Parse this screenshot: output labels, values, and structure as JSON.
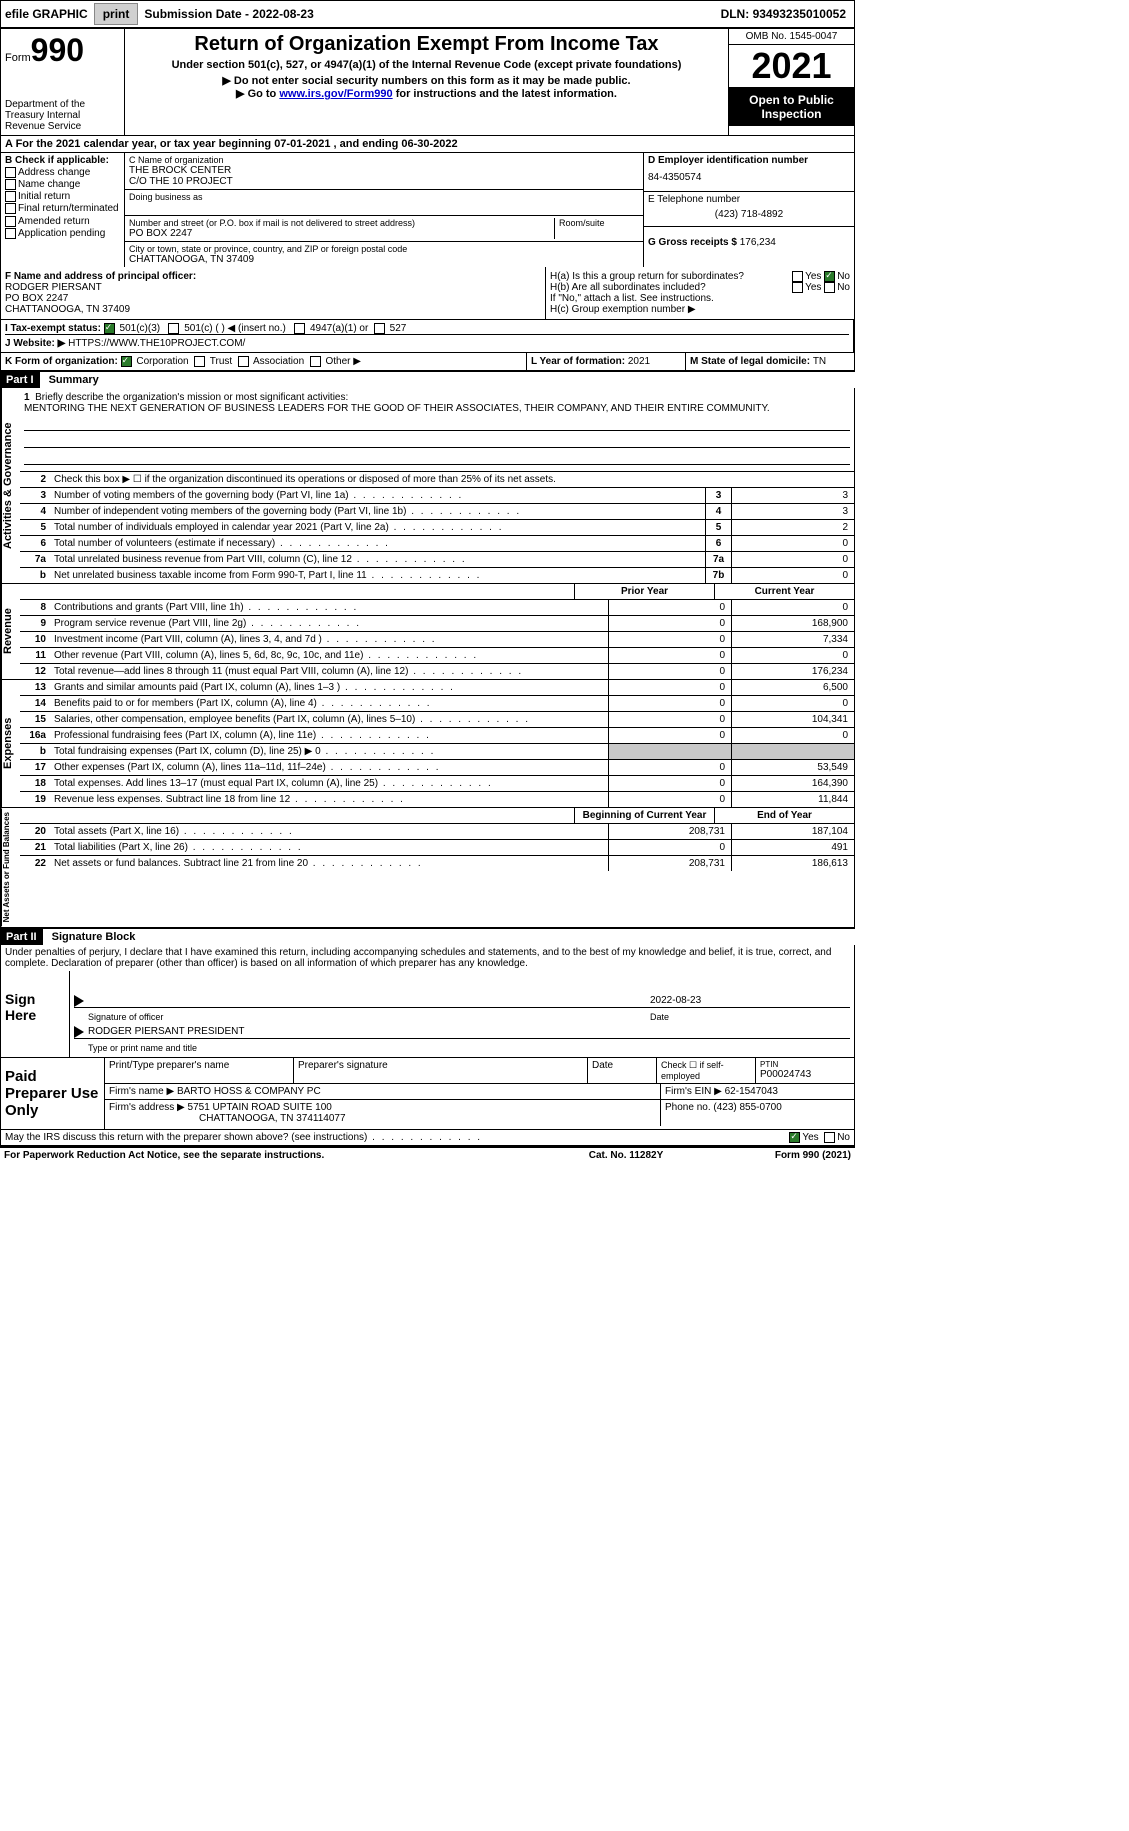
{
  "topbar": {
    "efile": "efile GRAPHIC",
    "print": "print",
    "subdate_label": "Submission Date - ",
    "subdate": "2022-08-23",
    "dln_label": "DLN: ",
    "dln": "93493235010052"
  },
  "header": {
    "form_word": "Form",
    "form_num": "990",
    "dept": "Department of the Treasury Internal Revenue Service",
    "title": "Return of Organization Exempt From Income Tax",
    "subtitle": "Under section 501(c), 527, or 4947(a)(1) of the Internal Revenue Code (except private foundations)",
    "instr1": "▶ Do not enter social security numbers on this form as it may be made public.",
    "instr2_pre": "▶ Go to ",
    "instr2_link": "www.irs.gov/Form990",
    "instr2_post": " for instructions and the latest information.",
    "omb": "OMB No. 1545-0047",
    "year": "2021",
    "open": "Open to Public Inspection"
  },
  "row_a": "A For the 2021 calendar year, or tax year beginning 07-01-2021    , and ending 06-30-2022",
  "col_b": {
    "title": "B Check if applicable:",
    "items": [
      "Address change",
      "Name change",
      "Initial return",
      "Final return/terminated",
      "Amended return",
      "Application pending"
    ]
  },
  "col_c": {
    "name_label": "C Name of organization",
    "name1": "THE BROCK CENTER",
    "name2": "C/O THE 10 PROJECT",
    "dba_label": "Doing business as",
    "addr_label": "Number and street (or P.O. box if mail is not delivered to street address)",
    "room_label": "Room/suite",
    "addr": "PO BOX 2247",
    "city_label": "City or town, state or province, country, and ZIP or foreign postal code",
    "city": "CHATTANOOGA, TN  37409"
  },
  "col_d": {
    "ein_label": "D Employer identification number",
    "ein": "84-4350574",
    "tel_label": "E Telephone number",
    "tel": "(423) 718-4892",
    "gross_label": "G Gross receipts $ ",
    "gross": "176,234"
  },
  "col_f": {
    "label": "F Name and address of principal officer:",
    "name": "RODGER PIERSANT",
    "addr": "PO BOX 2247",
    "city": "CHATTANOOGA, TN  37409"
  },
  "col_h": {
    "ha": "H(a)  Is this a group return for subordinates?",
    "hb": "H(b)  Are all subordinates included?",
    "hb_note": "If \"No,\" attach a list. See instructions.",
    "hc": "H(c)  Group exemption number ▶",
    "yes": "Yes",
    "no": "No"
  },
  "row_i": {
    "label": "I    Tax-exempt status:",
    "opt1": "501(c)(3)",
    "opt2": "501(c) (  ) ◀ (insert no.)",
    "opt3": "4947(a)(1) or",
    "opt4": "527"
  },
  "row_j": {
    "label": "J   Website: ▶",
    "url": "HTTPS://WWW.THE10PROJECT.COM/"
  },
  "row_k": {
    "label": "K Form of organization:",
    "opts": [
      "Corporation",
      "Trust",
      "Association",
      "Other ▶"
    ],
    "l_label": "L Year of formation: ",
    "l_val": "2021",
    "m_label": "M State of legal domicile: ",
    "m_val": "TN"
  },
  "parts": {
    "p1": "Part I",
    "p1_title": "Summary",
    "p2": "Part II",
    "p2_title": "Signature Block"
  },
  "vlabels": {
    "act": "Activities & Governance",
    "rev": "Revenue",
    "exp": "Expenses",
    "net": "Net Assets or Fund Balances"
  },
  "summary": {
    "q1": "Briefly describe the organization's mission or most significant activities:",
    "mission": "MENTORING THE NEXT GENERATION OF BUSINESS LEADERS FOR THE GOOD OF THEIR ASSOCIATES, THEIR COMPANY, AND THEIR ENTIRE COMMUNITY.",
    "q2": "Check this box ▶ ☐ if the organization discontinued its operations or disposed of more than 25% of its net assets.",
    "lines_single": [
      {
        "n": "3",
        "t": "Number of voting members of the governing body (Part VI, line 1a)",
        "box": "3",
        "v": "3"
      },
      {
        "n": "4",
        "t": "Number of independent voting members of the governing body (Part VI, line 1b)",
        "box": "4",
        "v": "3"
      },
      {
        "n": "5",
        "t": "Total number of individuals employed in calendar year 2021 (Part V, line 2a)",
        "box": "5",
        "v": "2"
      },
      {
        "n": "6",
        "t": "Total number of volunteers (estimate if necessary)",
        "box": "6",
        "v": "0"
      },
      {
        "n": "7a",
        "t": "Total unrelated business revenue from Part VIII, column (C), line 12",
        "box": "7a",
        "v": "0"
      },
      {
        "n": "b",
        "t": "Net unrelated business taxable income from Form 990-T, Part I, line 11",
        "box": "7b",
        "v": "0"
      }
    ],
    "col_prior": "Prior Year",
    "col_current": "Current Year",
    "revenue": [
      {
        "n": "8",
        "t": "Contributions and grants (Part VIII, line 1h)",
        "p": "0",
        "c": "0"
      },
      {
        "n": "9",
        "t": "Program service revenue (Part VIII, line 2g)",
        "p": "0",
        "c": "168,900"
      },
      {
        "n": "10",
        "t": "Investment income (Part VIII, column (A), lines 3, 4, and 7d )",
        "p": "0",
        "c": "7,334"
      },
      {
        "n": "11",
        "t": "Other revenue (Part VIII, column (A), lines 5, 6d, 8c, 9c, 10c, and 11e)",
        "p": "0",
        "c": "0"
      },
      {
        "n": "12",
        "t": "Total revenue—add lines 8 through 11 (must equal Part VIII, column (A), line 12)",
        "p": "0",
        "c": "176,234"
      }
    ],
    "expenses": [
      {
        "n": "13",
        "t": "Grants and similar amounts paid (Part IX, column (A), lines 1–3 )",
        "p": "0",
        "c": "6,500"
      },
      {
        "n": "14",
        "t": "Benefits paid to or for members (Part IX, column (A), line 4)",
        "p": "0",
        "c": "0"
      },
      {
        "n": "15",
        "t": "Salaries, other compensation, employee benefits (Part IX, column (A), lines 5–10)",
        "p": "0",
        "c": "104,341"
      },
      {
        "n": "16a",
        "t": "Professional fundraising fees (Part IX, column (A), line 11e)",
        "p": "0",
        "c": "0"
      },
      {
        "n": "b",
        "t": "Total fundraising expenses (Part IX, column (D), line 25) ▶ 0",
        "p": "shaded",
        "c": "shaded"
      },
      {
        "n": "17",
        "t": "Other expenses (Part IX, column (A), lines 11a–11d, 11f–24e)",
        "p": "0",
        "c": "53,549"
      },
      {
        "n": "18",
        "t": "Total expenses. Add lines 13–17 (must equal Part IX, column (A), line 25)",
        "p": "0",
        "c": "164,390"
      },
      {
        "n": "19",
        "t": "Revenue less expenses. Subtract line 18 from line 12",
        "p": "0",
        "c": "11,844"
      }
    ],
    "col_begin": "Beginning of Current Year",
    "col_end": "End of Year",
    "netassets": [
      {
        "n": "20",
        "t": "Total assets (Part X, line 16)",
        "p": "208,731",
        "c": "187,104"
      },
      {
        "n": "21",
        "t": "Total liabilities (Part X, line 26)",
        "p": "0",
        "c": "491"
      },
      {
        "n": "22",
        "t": "Net assets or fund balances. Subtract line 21 from line 20",
        "p": "208,731",
        "c": "186,613"
      }
    ]
  },
  "penalty": "Under penalties of perjury, I declare that I have examined this return, including accompanying schedules and statements, and to the best of my knowledge and belief, it is true, correct, and complete. Declaration of preparer (other than officer) is based on all information of which preparer has any knowledge.",
  "sign": {
    "left": "Sign Here",
    "sig_label": "Signature of officer",
    "date": "2022-08-23",
    "date_label": "Date",
    "name": "RODGER PIERSANT  PRESIDENT",
    "name_label": "Type or print name and title"
  },
  "preparer": {
    "left": "Paid Preparer Use Only",
    "h1": "Print/Type preparer's name",
    "h2": "Preparer's signature",
    "h3": "Date",
    "h4_pre": "Check ☐ if self-employed",
    "h5_label": "PTIN",
    "h5": "P00024743",
    "firm_label": "Firm's name    ▶",
    "firm": "BARTO HOSS & COMPANY PC",
    "firm_ein_label": "Firm's EIN ▶",
    "firm_ein": "62-1547043",
    "addr_label": "Firm's address ▶",
    "addr1": "5751 UPTAIN ROAD SUITE 100",
    "addr2": "CHATTANOOGA, TN  374114077",
    "phone_label": "Phone no. ",
    "phone": "(423) 855-0700"
  },
  "discuss": {
    "q": "May the IRS discuss this return with the preparer shown above? (see instructions)",
    "yes": "Yes",
    "no": "No"
  },
  "footer": {
    "left": "For Paperwork Reduction Act Notice, see the separate instructions.",
    "mid": "Cat. No. 11282Y",
    "right": "Form 990 (2021)"
  }
}
